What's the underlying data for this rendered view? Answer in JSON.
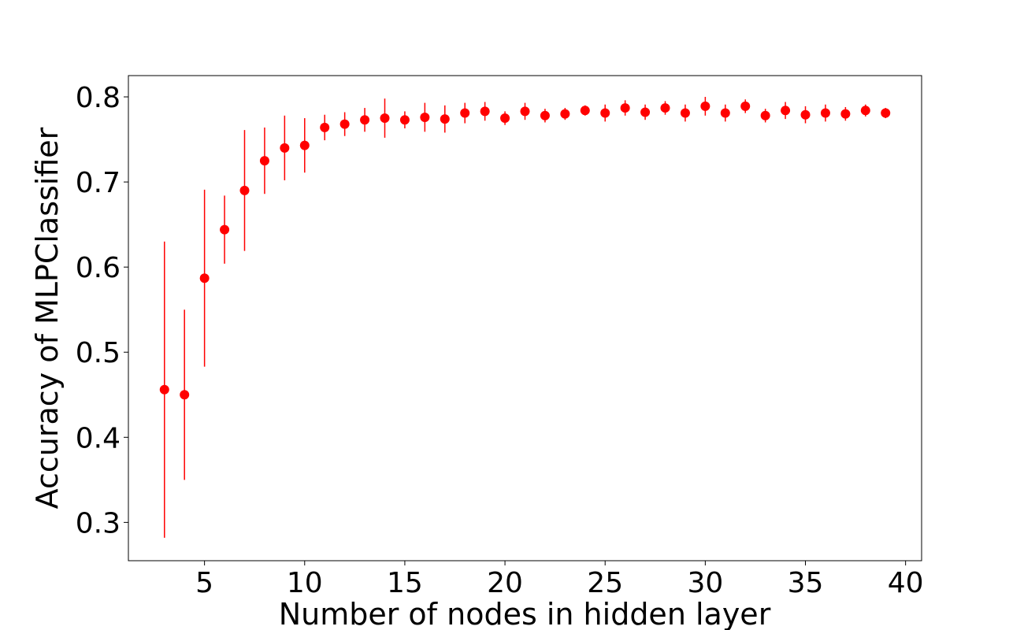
{
  "chart_data": {
    "type": "scatter",
    "style": "errorbar",
    "title": "",
    "xlabel": "Number of nodes in hidden layer",
    "ylabel": "Accuracy of MLPClassifier",
    "xlim": [
      1.2,
      40.8
    ],
    "ylim": [
      0.255,
      0.825
    ],
    "x_ticks": [
      5,
      10,
      15,
      20,
      25,
      30,
      35,
      40
    ],
    "y_ticks": [
      0.3,
      0.4,
      0.5,
      0.6,
      0.7,
      0.8
    ],
    "grid": false,
    "legend": "none",
    "color": "#ff0000",
    "points": [
      {
        "x": 3,
        "y": 0.456,
        "err": 0.174
      },
      {
        "x": 4,
        "y": 0.45,
        "err": 0.1
      },
      {
        "x": 5,
        "y": 0.587,
        "err": 0.104
      },
      {
        "x": 6,
        "y": 0.644,
        "err": 0.04
      },
      {
        "x": 7,
        "y": 0.69,
        "err": 0.071
      },
      {
        "x": 8,
        "y": 0.725,
        "err": 0.039
      },
      {
        "x": 9,
        "y": 0.74,
        "err": 0.038
      },
      {
        "x": 10,
        "y": 0.743,
        "err": 0.032
      },
      {
        "x": 11,
        "y": 0.764,
        "err": 0.015
      },
      {
        "x": 12,
        "y": 0.768,
        "err": 0.014
      },
      {
        "x": 13,
        "y": 0.773,
        "err": 0.014
      },
      {
        "x": 14,
        "y": 0.775,
        "err": 0.023
      },
      {
        "x": 15,
        "y": 0.773,
        "err": 0.01
      },
      {
        "x": 16,
        "y": 0.776,
        "err": 0.017
      },
      {
        "x": 17,
        "y": 0.774,
        "err": 0.016
      },
      {
        "x": 18,
        "y": 0.781,
        "err": 0.012
      },
      {
        "x": 19,
        "y": 0.783,
        "err": 0.011
      },
      {
        "x": 20,
        "y": 0.775,
        "err": 0.008
      },
      {
        "x": 21,
        "y": 0.783,
        "err": 0.01
      },
      {
        "x": 22,
        "y": 0.778,
        "err": 0.008
      },
      {
        "x": 23,
        "y": 0.78,
        "err": 0.007
      },
      {
        "x": 24,
        "y": 0.784,
        "err": 0.006
      },
      {
        "x": 25,
        "y": 0.781,
        "err": 0.01
      },
      {
        "x": 26,
        "y": 0.787,
        "err": 0.009
      },
      {
        "x": 27,
        "y": 0.782,
        "err": 0.009
      },
      {
        "x": 28,
        "y": 0.787,
        "err": 0.008
      },
      {
        "x": 29,
        "y": 0.781,
        "err": 0.01
      },
      {
        "x": 30,
        "y": 0.789,
        "err": 0.011
      },
      {
        "x": 31,
        "y": 0.781,
        "err": 0.01
      },
      {
        "x": 32,
        "y": 0.789,
        "err": 0.008
      },
      {
        "x": 33,
        "y": 0.778,
        "err": 0.008
      },
      {
        "x": 34,
        "y": 0.784,
        "err": 0.01
      },
      {
        "x": 35,
        "y": 0.779,
        "err": 0.01
      },
      {
        "x": 36,
        "y": 0.781,
        "err": 0.01
      },
      {
        "x": 37,
        "y": 0.78,
        "err": 0.008
      },
      {
        "x": 38,
        "y": 0.784,
        "err": 0.007
      },
      {
        "x": 39,
        "y": 0.781,
        "err": 0.006
      }
    ]
  }
}
